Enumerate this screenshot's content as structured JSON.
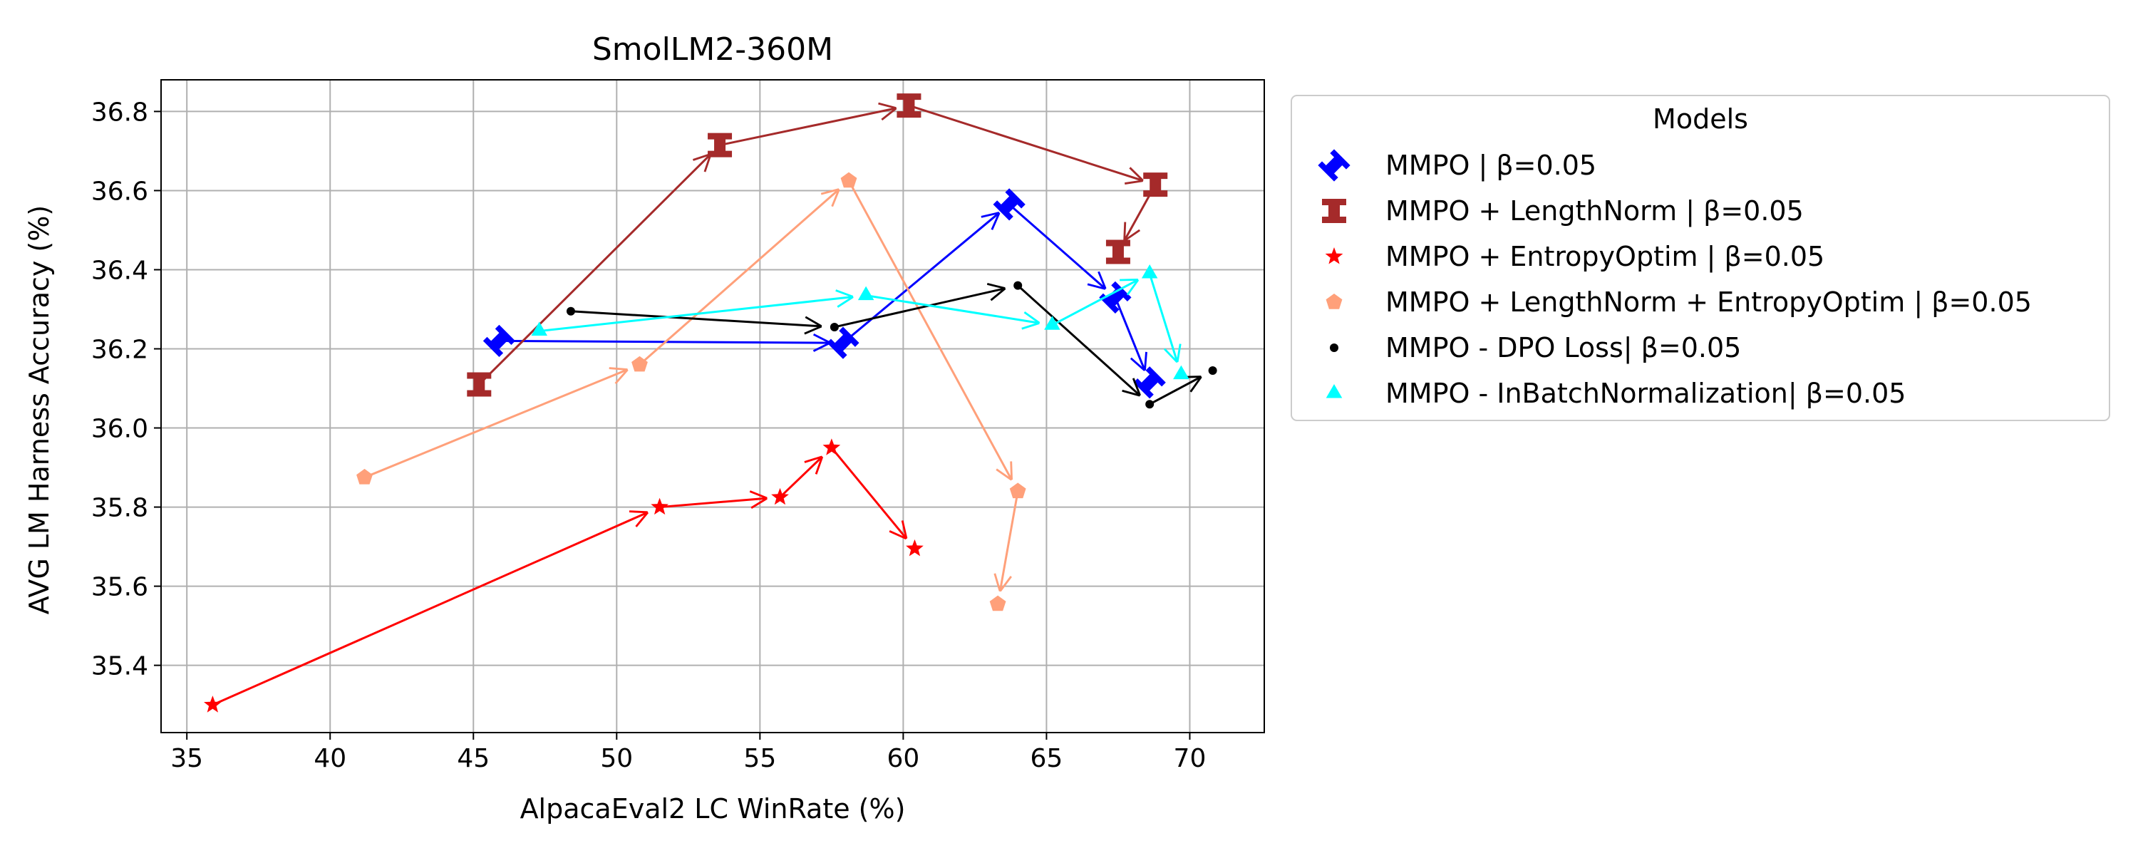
{
  "chart_data": {
    "type": "scatter",
    "title": "SmolLM2-360M",
    "xlabel": "AlpacaEval2 LC WinRate (%)",
    "ylabel": "AVG LM Harness Accuracy (%)",
    "xlim": [
      34.1,
      72.6
    ],
    "ylim": [
      35.23,
      36.88
    ],
    "x_ticks": [
      35,
      40,
      45,
      50,
      55,
      60,
      65,
      70
    ],
    "y_ticks": [
      35.4,
      35.6,
      35.8,
      36.0,
      36.2,
      36.4,
      36.6,
      36.8
    ],
    "grid": true,
    "legend": {
      "title": "Models",
      "placement": "outside-right"
    },
    "series": [
      {
        "name": "MMPO | β=0.05",
        "color": "#0000ff",
        "marker": "X",
        "connected": true,
        "points": [
          [
            45.9,
            36.22
          ],
          [
            57.9,
            36.215
          ],
          [
            63.7,
            36.565
          ],
          [
            67.4,
            36.33
          ],
          [
            68.6,
            36.115
          ]
        ]
      },
      {
        "name": "MMPO + LengthNorm | β=0.05",
        "color": "#a52a2a",
        "marker": "P",
        "connected": true,
        "points": [
          [
            45.2,
            36.11
          ],
          [
            53.6,
            36.715
          ],
          [
            60.2,
            36.815
          ],
          [
            68.8,
            36.615
          ],
          [
            67.5,
            36.445
          ]
        ]
      },
      {
        "name": "MMPO + EntropyOptim | β=0.05",
        "color": "#ff0000",
        "marker": "star",
        "connected": true,
        "points": [
          [
            35.9,
            35.3
          ],
          [
            51.5,
            35.8
          ],
          [
            55.7,
            35.825
          ],
          [
            57.5,
            35.95
          ],
          [
            60.4,
            35.695
          ]
        ]
      },
      {
        "name": "MMPO + LengthNorm + EntropyOptim | β=0.05",
        "color": "#ffa07a",
        "marker": "pentagon",
        "connected": true,
        "points": [
          [
            41.2,
            35.875
          ],
          [
            50.8,
            36.16
          ],
          [
            58.1,
            36.625
          ],
          [
            64.0,
            35.84
          ],
          [
            63.3,
            35.555
          ]
        ]
      },
      {
        "name": "MMPO - DPO Loss| β=0.05",
        "color": "#000000",
        "marker": "dot",
        "connected": true,
        "points": [
          [
            48.4,
            36.295
          ],
          [
            57.6,
            36.255
          ],
          [
            64.0,
            36.36
          ],
          [
            68.6,
            36.06
          ],
          [
            70.8,
            36.145
          ]
        ]
      },
      {
        "name": "MMPO - InBatchNormalization| β=0.05",
        "color": "#00ffff",
        "marker": "triangle",
        "connected": true,
        "points": [
          [
            47.3,
            36.245
          ],
          [
            58.7,
            36.335
          ],
          [
            65.2,
            36.26
          ],
          [
            68.6,
            36.39
          ],
          [
            69.7,
            36.135
          ]
        ]
      }
    ]
  }
}
